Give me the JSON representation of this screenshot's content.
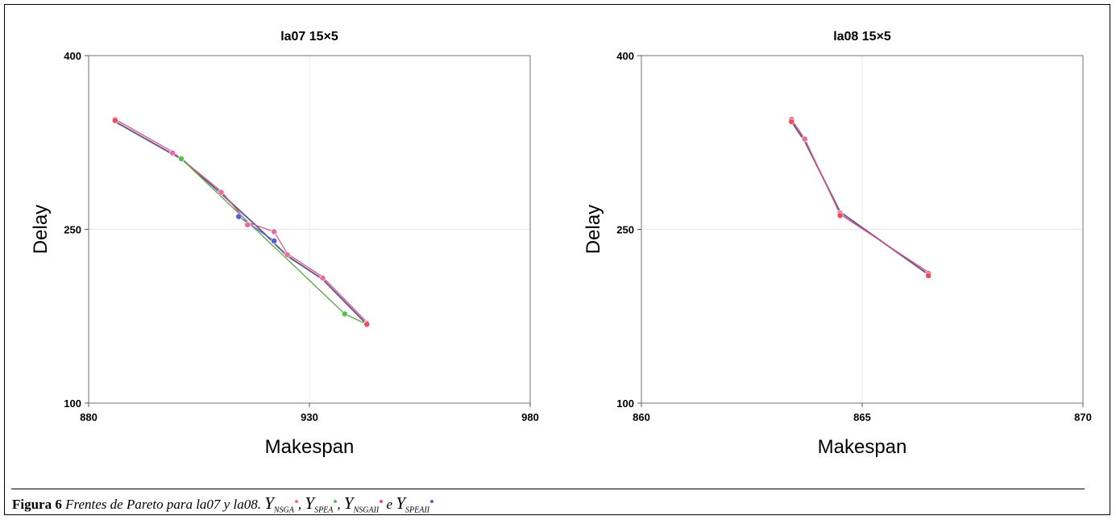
{
  "caption": {
    "label": "Figura 6",
    "text": "Frentes de Pareto para la07 y la08.",
    "items": [
      {
        "main": "Y",
        "sub": "NSGA",
        "sep": ", ",
        "color": "#e36fa0"
      },
      {
        "main": "Y",
        "sub": "SPEA",
        "sep": ", ",
        "color": "#55c052"
      },
      {
        "main": "Y",
        "sub": "NSGAII",
        "sep": " e ",
        "color": "#ef4d5b"
      },
      {
        "main": "Y",
        "sub": "SPEAII",
        "sep": "",
        "color": "#5560d0"
      }
    ]
  },
  "chart_data": [
    {
      "type": "line",
      "title": "la07 15×5",
      "xlabel": "Makespan",
      "ylabel": "Delay",
      "xlim": [
        880,
        980
      ],
      "ylim": [
        100,
        400
      ],
      "xticks": [
        880,
        930,
        980
      ],
      "yticks": [
        100,
        250,
        400
      ],
      "grid": true,
      "series": [
        {
          "color": "#6a5a8a",
          "points": [
            [
              886,
              343
            ],
            [
              899,
              315
            ],
            [
              901,
              311
            ],
            [
              910,
              281
            ],
            [
              918,
              253
            ],
            [
              925,
              227
            ],
            [
              933,
              207
            ],
            [
              943,
              168
            ]
          ]
        },
        {
          "color": "#d9568a",
          "points": [
            [
              886,
              345
            ],
            [
              899,
              317
            ],
            [
              910,
              283
            ],
            [
              916,
              256
            ],
            [
              922,
              248
            ],
            [
              925,
              229
            ],
            [
              933,
              209
            ],
            [
              943,
              170
            ]
          ]
        },
        {
          "color": "#55a840",
          "points": [
            [
              901,
              311
            ],
            [
              938,
              177
            ],
            [
              943,
              168
            ]
          ]
        },
        {
          "color": "#5560d0",
          "points": [
            [
              914,
              261
            ],
            [
              922,
              240
            ]
          ]
        }
      ],
      "markers": [
        {
          "color": "#e36fa0",
          "points": [
            [
              886,
              345
            ],
            [
              899,
              316
            ],
            [
              910,
              282
            ],
            [
              916,
              254
            ],
            [
              922,
              248
            ],
            [
              925,
              228
            ],
            [
              933,
              208
            ],
            [
              943,
              169
            ]
          ]
        },
        {
          "color": "#55c052",
          "points": [
            [
              901,
              311
            ],
            [
              938,
              177
            ]
          ]
        },
        {
          "color": "#ef4d5b",
          "points": [
            [
              886,
              344
            ],
            [
              943,
              168
            ]
          ]
        },
        {
          "color": "#5560d0",
          "points": [
            [
              914,
              261
            ],
            [
              922,
              240
            ]
          ]
        }
      ]
    },
    {
      "type": "line",
      "title": "la08 15×5",
      "xlabel": "Makespan",
      "ylabel": "Delay",
      "xlim": [
        860,
        870
      ],
      "ylim": [
        100,
        400
      ],
      "xticks": [
        860,
        865,
        870
      ],
      "yticks": [
        100,
        250,
        400
      ],
      "grid": true,
      "series": [
        {
          "color": "#6a5a8a",
          "points": [
            [
              863.4,
              343
            ],
            [
              863.7,
              326
            ],
            [
              864.5,
              265
            ],
            [
              866.5,
              211
            ]
          ]
        },
        {
          "color": "#d9568a",
          "points": [
            [
              863.4,
              345
            ],
            [
              863.7,
              328
            ],
            [
              864.5,
              263
            ],
            [
              866.5,
              213
            ]
          ]
        }
      ],
      "markers": [
        {
          "color": "#e36fa0",
          "points": [
            [
              863.4,
              345
            ],
            [
              863.7,
              328
            ],
            [
              864.5,
              264
            ],
            [
              866.5,
              212
            ]
          ]
        },
        {
          "color": "#ef4d5b",
          "points": [
            [
              863.4,
              343
            ],
            [
              864.5,
              262
            ],
            [
              866.5,
              210
            ]
          ]
        }
      ]
    }
  ]
}
